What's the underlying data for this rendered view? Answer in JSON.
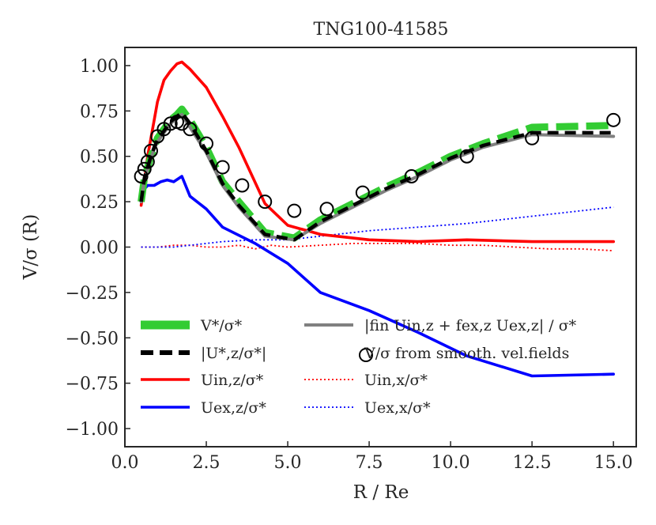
{
  "chart_data": {
    "type": "line",
    "title": "TNG100-41585",
    "xlabel": "R / Re",
    "ylabel": "V/σ (R)",
    "xlim": [
      0.0,
      15.7
    ],
    "ylim": [
      -1.1,
      1.1
    ],
    "xticks": [
      "0.0",
      "2.5",
      "5.0",
      "7.5",
      "10.0",
      "12.5",
      "15.0"
    ],
    "yticks": [
      "−1.00",
      "−0.75",
      "−0.50",
      "−0.25",
      "0.00",
      "0.25",
      "0.50",
      "0.75",
      "1.00"
    ],
    "grid": false,
    "legend_position": "lower-left",
    "legend": [
      {
        "label": "V*/σ*",
        "series": "v_star"
      },
      {
        "label": "|U*,z/σ*|",
        "series": "u_star_z"
      },
      {
        "label": "Uin,z/σ*",
        "series": "u_in_z"
      },
      {
        "label": "Uex,z/σ*",
        "series": "u_ex_z"
      },
      {
        "label": "|fin Uin,z + fex,z Uex,z| / σ*",
        "series": "f_comb"
      },
      {
        "label": "V/σ from smooth. vel.fields",
        "series": "smooth"
      },
      {
        "label": "Uin,x/σ*",
        "series": "u_in_x"
      },
      {
        "label": "Uex,x/σ*",
        "series": "u_ex_x"
      }
    ],
    "series": [
      {
        "key": "v_star",
        "color": "#33cc33",
        "style": "thick",
        "x": [
          0.5,
          0.6,
          0.7,
          0.8,
          0.9,
          1.0,
          1.2,
          1.4,
          1.6,
          1.75,
          2.0,
          2.5,
          3.0,
          3.5,
          4.3,
          5.2,
          6.0,
          7.0,
          8.0,
          9.0,
          10.0,
          11.0,
          12.5,
          15.0
        ],
        "y": [
          0.25,
          0.38,
          0.44,
          0.5,
          0.55,
          0.6,
          0.65,
          0.7,
          0.73,
          0.76,
          0.7,
          0.55,
          0.36,
          0.25,
          0.08,
          0.05,
          0.15,
          0.24,
          0.33,
          0.41,
          0.5,
          0.57,
          0.66,
          0.67
        ]
      },
      {
        "key": "u_star_z",
        "color": "#000000",
        "style": "dashed",
        "x": [
          0.5,
          0.6,
          0.7,
          0.8,
          0.9,
          1.0,
          1.2,
          1.4,
          1.6,
          1.75,
          2.0,
          2.5,
          3.0,
          3.5,
          4.3,
          5.2,
          6.0,
          7.0,
          8.0,
          9.0,
          10.0,
          11.0,
          12.5,
          15.0
        ],
        "y": [
          0.25,
          0.38,
          0.44,
          0.5,
          0.55,
          0.59,
          0.64,
          0.69,
          0.72,
          0.74,
          0.68,
          0.53,
          0.35,
          0.23,
          0.07,
          0.04,
          0.14,
          0.23,
          0.32,
          0.4,
          0.49,
          0.56,
          0.63,
          0.63
        ]
      },
      {
        "key": "f_comb",
        "color": "#808080",
        "style": "solid",
        "x": [
          0.5,
          0.6,
          0.7,
          0.8,
          0.9,
          1.0,
          1.2,
          1.4,
          1.6,
          1.75,
          2.0,
          2.5,
          3.0,
          3.5,
          4.3,
          5.2,
          6.0,
          7.0,
          8.0,
          9.0,
          10.0,
          11.0,
          12.5,
          15.0
        ],
        "y": [
          0.25,
          0.37,
          0.43,
          0.49,
          0.54,
          0.58,
          0.63,
          0.68,
          0.71,
          0.73,
          0.66,
          0.52,
          0.34,
          0.22,
          0.06,
          0.04,
          0.13,
          0.22,
          0.31,
          0.39,
          0.48,
          0.55,
          0.62,
          0.61
        ]
      },
      {
        "key": "u_in_z",
        "color": "#ff0000",
        "style": "solid",
        "x": [
          0.5,
          0.7,
          0.9,
          1.0,
          1.2,
          1.4,
          1.6,
          1.75,
          2.0,
          2.5,
          3.0,
          3.5,
          4.3,
          5.0,
          6.0,
          7.5,
          9.0,
          10.5,
          12.5,
          15.0
        ],
        "y": [
          0.23,
          0.5,
          0.7,
          0.8,
          0.92,
          0.97,
          1.01,
          1.02,
          0.98,
          0.88,
          0.72,
          0.55,
          0.24,
          0.12,
          0.07,
          0.04,
          0.03,
          0.04,
          0.03,
          0.03
        ]
      },
      {
        "key": "u_ex_z",
        "color": "#0000ff",
        "style": "solid",
        "x": [
          0.5,
          0.6,
          0.7,
          0.9,
          1.1,
          1.3,
          1.5,
          1.75,
          2.0,
          2.5,
          3.0,
          4.0,
          5.0,
          6.0,
          7.5,
          9.0,
          10.5,
          12.5,
          15.0
        ],
        "y": [
          0.25,
          0.32,
          0.34,
          0.34,
          0.36,
          0.37,
          0.36,
          0.39,
          0.28,
          0.21,
          0.11,
          0.02,
          -0.09,
          -0.25,
          -0.35,
          -0.47,
          -0.6,
          -0.71,
          -0.7
        ]
      },
      {
        "key": "u_in_x",
        "color": "#ff0000",
        "style": "dotted",
        "x": [
          0.5,
          1.0,
          1.5,
          2.0,
          2.5,
          3.0,
          3.5,
          4.0,
          4.5,
          5.0,
          6.0,
          7.0,
          8.0,
          9.0,
          10.0,
          11.0,
          12.0,
          13.0,
          14.0,
          15.0
        ],
        "y": [
          0.0,
          0.0,
          0.01,
          0.01,
          0.0,
          0.0,
          0.01,
          -0.01,
          0.01,
          0.0,
          0.01,
          0.02,
          0.02,
          0.02,
          0.01,
          0.01,
          0.0,
          -0.01,
          -0.01,
          -0.02
        ]
      },
      {
        "key": "u_ex_x",
        "color": "#0000ff",
        "style": "dotted",
        "x": [
          0.5,
          1.0,
          1.5,
          2.0,
          2.5,
          3.0,
          4.0,
          5.0,
          6.0,
          7.5,
          9.0,
          10.5,
          12.0,
          13.5,
          15.0
        ],
        "y": [
          0.0,
          0.0,
          0.0,
          0.01,
          0.02,
          0.03,
          0.04,
          0.04,
          0.06,
          0.09,
          0.11,
          0.13,
          0.16,
          0.19,
          0.22
        ]
      },
      {
        "key": "smooth",
        "color": "#000000",
        "style": "markers",
        "x": [
          0.5,
          0.6,
          0.7,
          0.8,
          1.0,
          1.2,
          1.4,
          1.6,
          1.75,
          2.0,
          2.5,
          3.0,
          3.6,
          4.3,
          5.2,
          6.2,
          7.3,
          8.8,
          10.5,
          12.5,
          15.0
        ],
        "y": [
          0.39,
          0.43,
          0.47,
          0.53,
          0.61,
          0.65,
          0.68,
          0.69,
          0.68,
          0.65,
          0.57,
          0.44,
          0.34,
          0.25,
          0.2,
          0.21,
          0.3,
          0.39,
          0.5,
          0.6,
          0.7
        ]
      }
    ]
  }
}
